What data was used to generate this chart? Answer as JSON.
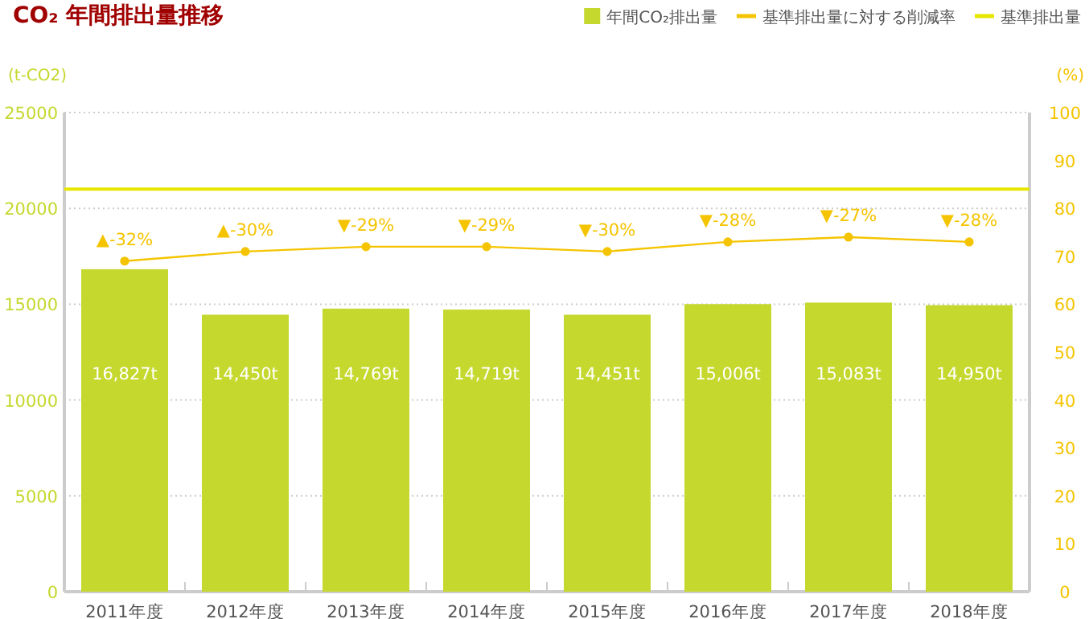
{
  "chart_data": {
    "type": "bar",
    "title": "CO₂ 年間排出量推移",
    "categories": [
      "2011年度",
      "2012年度",
      "2013年度",
      "2014年度",
      "2015年度",
      "2016年度",
      "2017年度",
      "2018年度"
    ],
    "series": [
      {
        "name": "年間CO₂排出量",
        "color": "#c5d82e",
        "values": [
          16827,
          14450,
          14769,
          14719,
          14451,
          15006,
          15083,
          14950
        ],
        "value_labels": [
          "16,827t",
          "14,450t",
          "14,769t",
          "14,719t",
          "14,451t",
          "15,006t",
          "15,083t",
          "14,950t"
        ]
      },
      {
        "name": "基準排出量に対する削減率",
        "type": "line",
        "axis": "y2",
        "color": "#f5c400",
        "marker": "circle",
        "values": [
          69,
          71,
          72,
          72,
          71,
          73,
          74,
          73
        ]
      }
    ],
    "annotations": [
      "▲-32%",
      "▲-30%",
      "▼-29%",
      "▼-29%",
      "▼-30%",
      "▼-28%",
      "▼-27%",
      "▼-28%"
    ],
    "ref_lines": [
      {
        "axis": "y",
        "value": 21000,
        "label": "基準排出量",
        "color": "#e6e600"
      }
    ],
    "ylabel": "(t-CO2)",
    "y2label": "(%)",
    "ylim": [
      0,
      25000
    ],
    "yticks": [
      0,
      5000,
      10000,
      15000,
      20000,
      25000
    ],
    "y2lim": [
      0,
      100
    ],
    "y2ticks": [
      0,
      10,
      20,
      30,
      40,
      50,
      60,
      70,
      80,
      90,
      100
    ],
    "grid": "y",
    "legend": "top right"
  }
}
